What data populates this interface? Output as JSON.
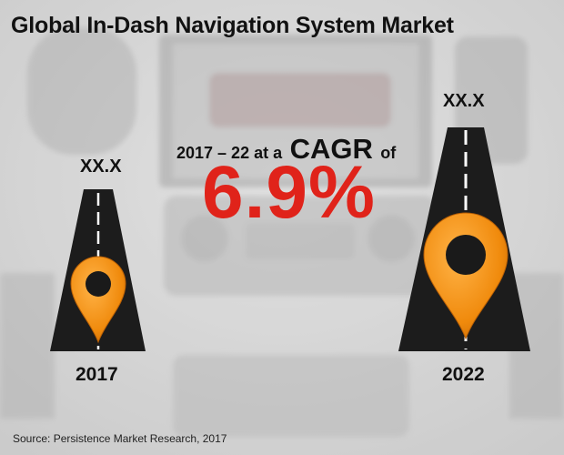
{
  "title": "Global In-Dash Navigation System Market",
  "cagr": {
    "prefix": "2017 – 22 at a",
    "word": "CAGR",
    "suffix": "of",
    "value": "6.9%"
  },
  "source": "Source: Persistence Market Research, 2017",
  "colors": {
    "road": "#1c1c1c",
    "lane": "#ffffff",
    "pin": "#f08a0c",
    "pin_dark": "#c96a06",
    "cagr_value": "#e0231a"
  },
  "chart_data": {
    "type": "bar",
    "categories": [
      "2017",
      "2022"
    ],
    "value_labels": [
      "XX.X",
      "XX.X"
    ],
    "title": "Global In-Dash Navigation System Market",
    "annotation": "2017 – 22 at a CAGR of 6.9%"
  }
}
